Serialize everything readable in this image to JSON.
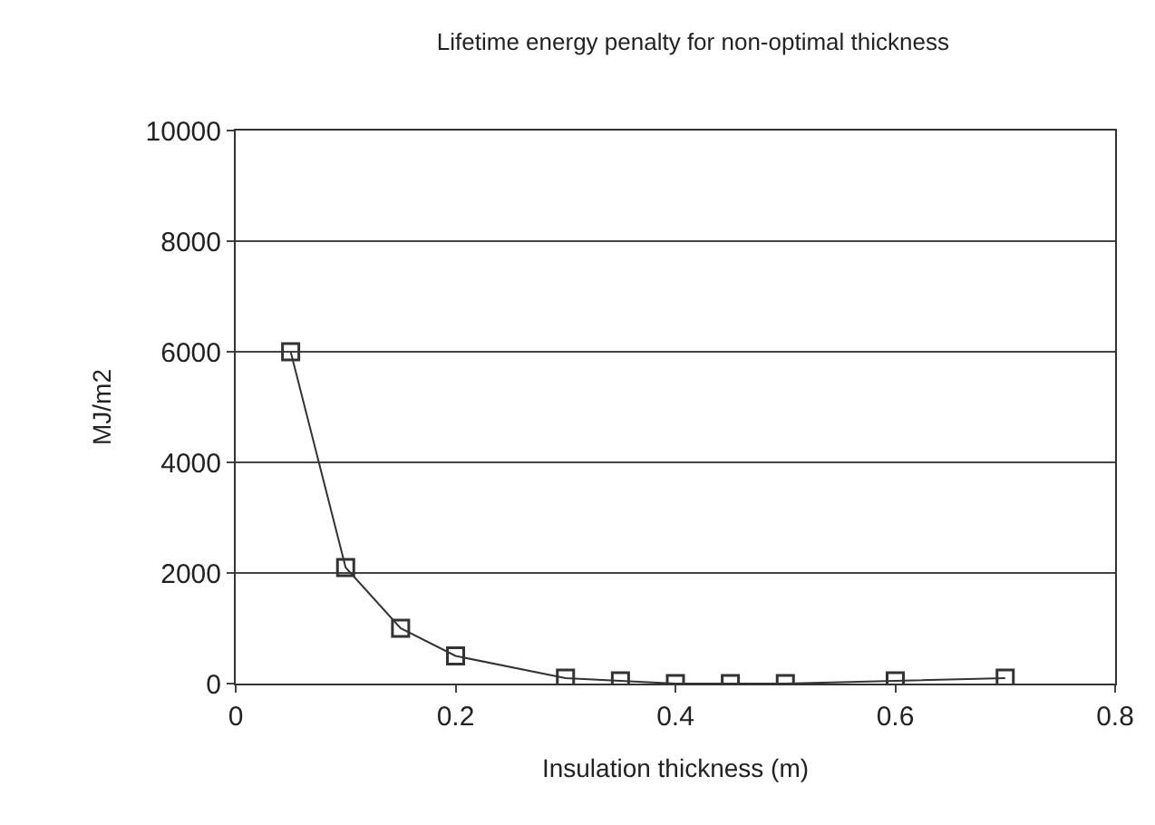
{
  "chart_data": {
    "type": "line",
    "title": "Lifetime energy penalty for non-optimal thickness",
    "xlabel": "Insulation thickness (m)",
    "ylabel": "MJ/m2",
    "x": [
      0.05,
      0.1,
      0.15,
      0.2,
      0.3,
      0.35,
      0.4,
      0.45,
      0.5,
      0.6,
      0.7
    ],
    "series": [
      {
        "color": "#333333",
        "values": [
          6000,
          2100,
          1000,
          500,
          100,
          50,
          0,
          0,
          0,
          50,
          100
        ]
      }
    ],
    "xlim": [
      0,
      0.8
    ],
    "xticks": [
      0,
      0.2,
      0.4,
      0.6,
      0.8
    ],
    "ylim": [
      0,
      10000
    ],
    "yticks": [
      0,
      2000,
      4000,
      6000,
      8000,
      10000
    ],
    "grid": "y",
    "marker": "square",
    "line_style": "solid"
  }
}
